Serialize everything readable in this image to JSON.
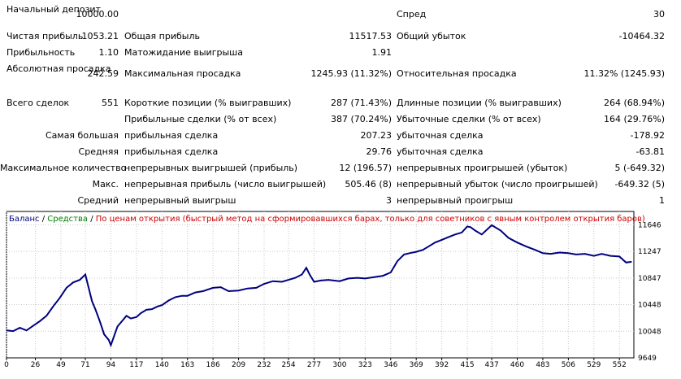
{
  "report": {
    "initial_deposit_label": "Начальный депозит",
    "initial_deposit_value": "10000.00",
    "spread_label": "Спред",
    "spread_value": "30",
    "net_profit_label": "Чистая прибыль",
    "net_profit_value": "1053.21",
    "gross_profit_label": "Общая прибыль",
    "gross_profit_value": "11517.53",
    "gross_loss_label": "Общий убыток",
    "gross_loss_value": "-10464.32",
    "profit_factor_label": "Прибыльность",
    "profit_factor_value": "1.10",
    "expected_payoff_label": "Матожидание выигрыша",
    "expected_payoff_value": "1.91",
    "abs_drawdown_label": "Абсолютная просадка",
    "abs_drawdown_value": "242.59",
    "max_drawdown_label": "Максимальная просадка",
    "max_drawdown_value": "1245.93 (11.32%)",
    "rel_drawdown_label": "Относительная просадка",
    "rel_drawdown_value": "11.32% (1245.93)",
    "total_trades_label": "Всего сделок",
    "total_trades_value": "551",
    "short_label": "Короткие позиции (% выигравших)",
    "short_value": "287 (71.43%)",
    "long_label": "Длинные позиции (% выигравших)",
    "long_value": "264 (68.94%)",
    "profit_trades_label": "Прибыльные сделки (% от всех)",
    "profit_trades_value": "387 (70.24%)",
    "loss_trades_label": "Убыточные сделки (% от всех)",
    "loss_trades_value": "164 (29.76%)",
    "largest_label": "Самая большая",
    "largest_profit_label": "прибыльная сделка",
    "largest_profit_value": "207.23",
    "largest_loss_label": "убыточная сделка",
    "largest_loss_value": "-178.92",
    "average_label": "Средняя",
    "average_profit_label": "прибыльная сделка",
    "average_profit_value": "29.76",
    "average_loss_label": "убыточная сделка",
    "average_loss_value": "-63.81",
    "max_count_label": "Максимальное количество",
    "max_consec_wins_label": "непрерывных выигрышей (прибыль)",
    "max_consec_wins_value": "12 (196.57)",
    "max_consec_losses_label": "непрерывных проигрышей (убыток)",
    "max_consec_losses_value": "5 (-649.32)",
    "max_label": "Макс.",
    "max_consec_profit_label": "непрерывная прибыль (число выигрышей)",
    "max_consec_profit_value": "505.46 (8)",
    "max_consec_loss_label": "непрерывный убыток (число проигрышей)",
    "max_consec_loss_value": "-649.32 (5)",
    "avg_label": "Средний",
    "avg_consec_win_label": "непрерывный выигрыш",
    "avg_consec_win_value": "3",
    "avg_consec_loss_label": "непрерывный проигрыш",
    "avg_consec_loss_value": "1"
  },
  "chart": {
    "legend_balance": "Баланс",
    "legend_sep1": " / ",
    "legend_equity": "Средства",
    "legend_sep2": " / ",
    "legend_mode": "По ценам открытия (быстрый метод на сформировавшихся барах, только для советников с явным контролем открытия баров)",
    "colors": {
      "balance": "#000080",
      "equity": "#008000",
      "mode": "#cc0000",
      "grid": "#c8c8c8",
      "frame": "#000000"
    }
  },
  "chart_data": {
    "type": "line",
    "x_ticks": [
      "0",
      "26",
      "49",
      "71",
      "94",
      "117",
      "140",
      "163",
      "186",
      "209",
      "232",
      "254",
      "277",
      "300",
      "323",
      "346",
      "369",
      "392",
      "415",
      "437",
      "460",
      "483",
      "506",
      "529",
      "552"
    ],
    "y_ticks": [
      "11646",
      "11247",
      "10847",
      "10448",
      "10048",
      "9649"
    ],
    "xlim": [
      0,
      565
    ],
    "ylim": [
      9649,
      11846
    ],
    "series": [
      {
        "name": "Баланс",
        "x": [
          0,
          6,
          12,
          18,
          24,
          30,
          36,
          42,
          48,
          54,
          60,
          66,
          71,
          74,
          77,
          80,
          84,
          88,
          92,
          94,
          97,
          100,
          104,
          108,
          112,
          117,
          121,
          126,
          131,
          136,
          140,
          146,
          152,
          158,
          163,
          170,
          177,
          186,
          193,
          200,
          209,
          217,
          225,
          232,
          240,
          248,
          254,
          260,
          266,
          270,
          273,
          277,
          283,
          290,
          300,
          308,
          316,
          323,
          331,
          339,
          346,
          352,
          358,
          363,
          369,
          375,
          381,
          386,
          392,
          398,
          404,
          410,
          415,
          418,
          422,
          428,
          437,
          445,
          452,
          460,
          468,
          476,
          483,
          490,
          498,
          506,
          513,
          521,
          529,
          536,
          544,
          552,
          558,
          563
        ],
        "y": [
          10060,
          10050,
          10100,
          10060,
          10130,
          10200,
          10280,
          10420,
          10550,
          10700,
          10780,
          10820,
          10900,
          10700,
          10500,
          10380,
          10200,
          10000,
          9920,
          9840,
          9980,
          10120,
          10200,
          10280,
          10240,
          10260,
          10320,
          10370,
          10380,
          10420,
          10440,
          10510,
          10560,
          10580,
          10580,
          10630,
          10650,
          10700,
          10710,
          10650,
          10660,
          10690,
          10700,
          10760,
          10800,
          10790,
          10820,
          10850,
          10900,
          11000,
          10900,
          10790,
          10810,
          10820,
          10800,
          10840,
          10850,
          10840,
          10860,
          10880,
          10930,
          11100,
          11200,
          11220,
          11240,
          11270,
          11330,
          11380,
          11420,
          11460,
          11500,
          11530,
          11620,
          11610,
          11560,
          11500,
          11640,
          11560,
          11450,
          11380,
          11320,
          11270,
          11220,
          11210,
          11230,
          11220,
          11200,
          11210,
          11180,
          11210,
          11180,
          11170,
          11080,
          11090
        ]
      }
    ]
  }
}
